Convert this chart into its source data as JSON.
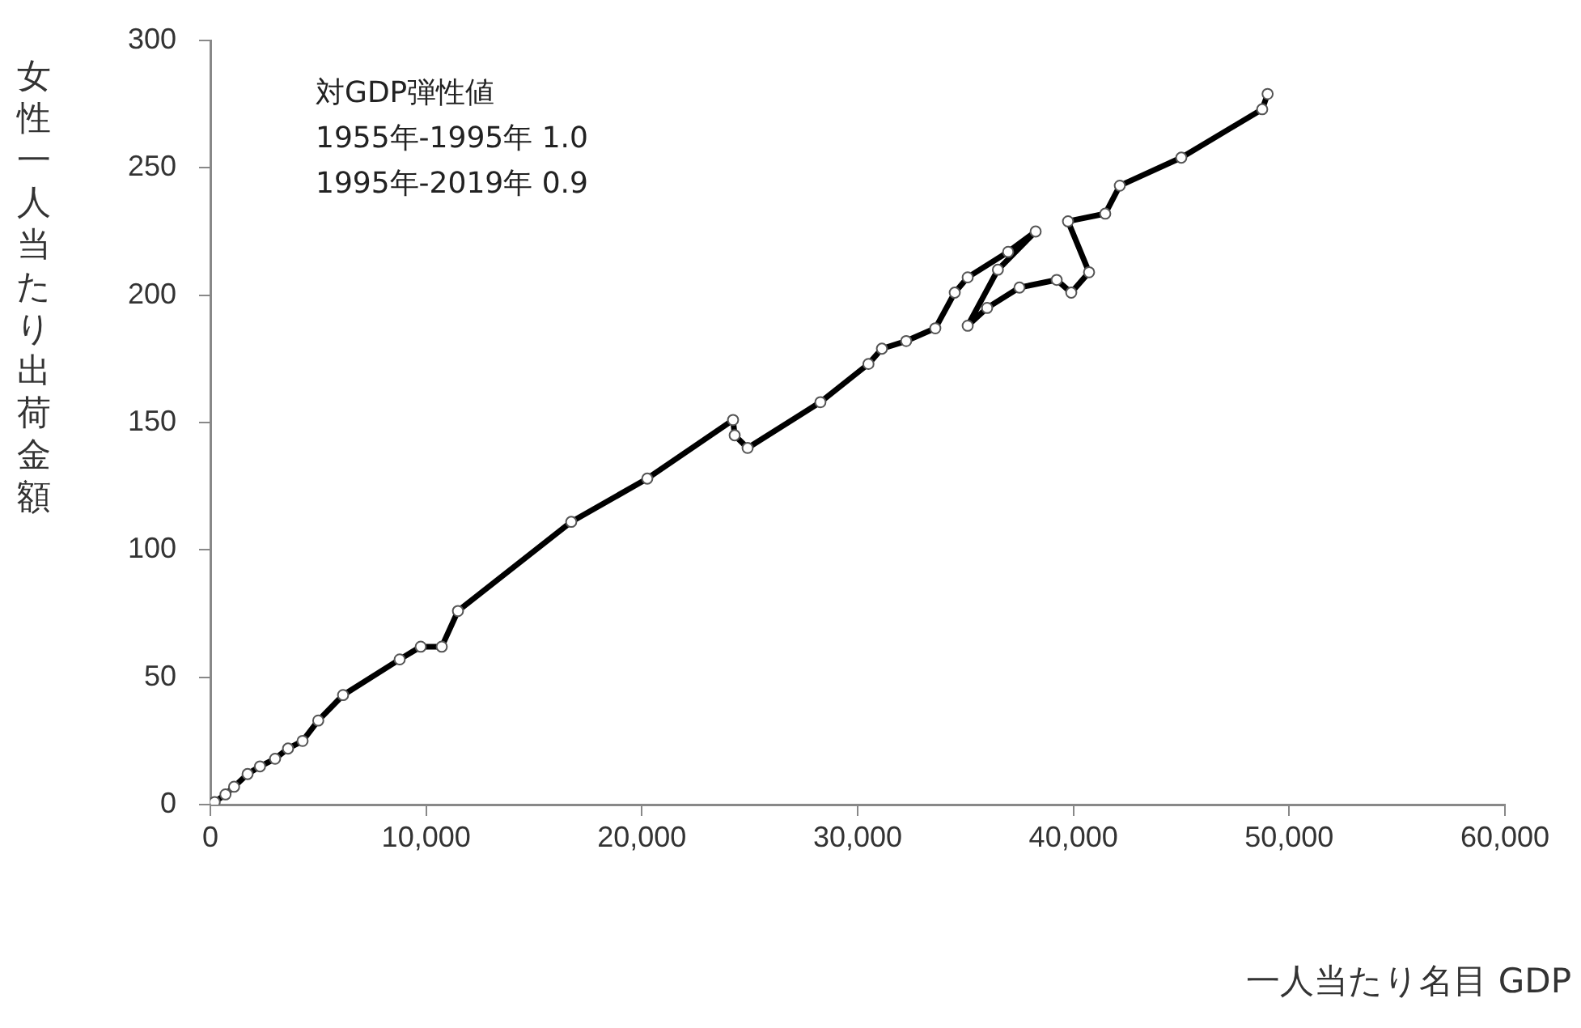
{
  "chart_data": {
    "type": "line",
    "xlabel": "一人当たり名目 GDP",
    "ylabel": "女性一人当たり出荷金額",
    "annotations": [
      "対GDP弾性値",
      "1955年-1995年  1.0",
      "1995年-2019年  0.9"
    ],
    "xlim": [
      0,
      60000
    ],
    "xticks": [
      0,
      {
        "value": 10000,
        "label": "10,000"
      },
      {
        "value": 20000,
        "label": "20,000"
      },
      {
        "value": 30000,
        "label": "30,000"
      },
      {
        "value": 40000,
        "label": "40,000"
      },
      {
        "value": 50000,
        "label": "50,000"
      },
      {
        "value": 60000,
        "label": "60,000"
      }
    ],
    "ylim": [
      0,
      300
    ],
    "yticks": [
      0,
      50,
      100,
      150,
      200,
      250,
      300
    ],
    "grid": false,
    "legend": false,
    "marker": "circle",
    "line_style": "solid",
    "series": [
      {
        "color": "#000000",
        "x": [
          200,
          700,
          1100,
          1725,
          2300,
          3000,
          3600,
          4275,
          5000,
          6150,
          8775,
          9750,
          10725,
          11475,
          16725,
          20250,
          24225,
          24300,
          24900,
          28275,
          30500,
          31125,
          32250,
          33600,
          34500,
          35100,
          36975,
          38250,
          36500,
          35100,
          36000,
          37500,
          39225,
          39900,
          40725,
          39750,
          41475,
          42150,
          45000,
          48750,
          49000
        ],
        "values": [
          1,
          4,
          7,
          12,
          15,
          18,
          22,
          25,
          33,
          43,
          57,
          62,
          62,
          76,
          111,
          128,
          151,
          145,
          140,
          158,
          173,
          179,
          182,
          187,
          201,
          207,
          217,
          225,
          210,
          188,
          195,
          203,
          206,
          201,
          209,
          229,
          232,
          243,
          254,
          273,
          279
        ]
      }
    ]
  }
}
